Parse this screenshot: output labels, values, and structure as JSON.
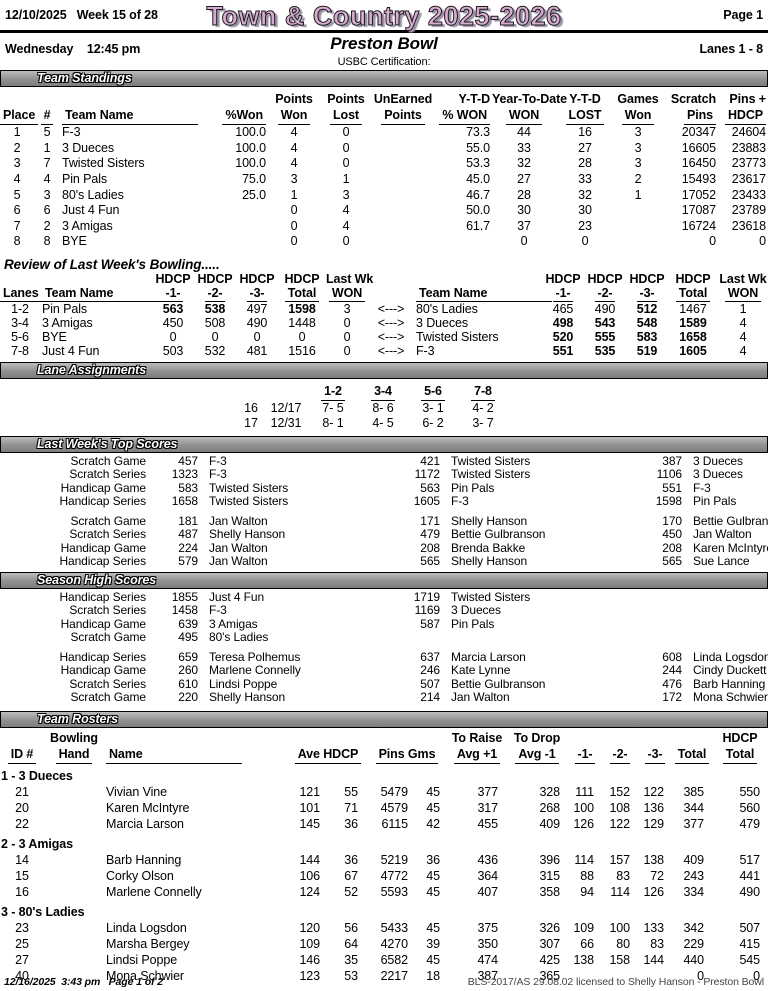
{
  "colors": {
    "title_fill": "#d9abd3",
    "title_shadow": "#9a93a8",
    "section_bar_gray": "#909090"
  },
  "header": {
    "date": "12/10/2025",
    "week": "Week 15 of 28",
    "title": "Town & Country 2025-2026",
    "page": "Page 1",
    "day": "Wednesday",
    "time": "12:45 pm",
    "center_name": "Preston Bowl",
    "lanes": "Lanes 1 - 8",
    "certification": "USBC Certification:"
  },
  "section_titles": {
    "standings": "Team Standings",
    "review": "Review of Last Week's Bowling.....",
    "lanes": "Lane Assignments",
    "top_scores": "Last Week's Top Scores",
    "season_high": "Season High Scores",
    "rosters": "Team Rosters"
  },
  "standings": {
    "header_row1": [
      "",
      "",
      "",
      "",
      "Points",
      "Points",
      "UnEarned",
      "Y-T-D",
      "Year-To-Date",
      "Y-T-D",
      "Games",
      "Scratch",
      "Pins +"
    ],
    "header_row2": [
      "Place",
      "#",
      "Team Name",
      "%Won",
      "Won",
      "Lost",
      "Points",
      "% WON",
      "WON",
      "LOST",
      "Won",
      "Pins",
      "HDCP"
    ],
    "rows": [
      [
        "1",
        "5",
        "F-3",
        "100.0",
        "4",
        "0",
        "",
        "73.3",
        "44",
        "16",
        "3",
        "20347",
        "24604"
      ],
      [
        "2",
        "1",
        "3 Dueces",
        "100.0",
        "4",
        "0",
        "",
        "55.0",
        "33",
        "27",
        "3",
        "16605",
        "23883"
      ],
      [
        "3",
        "7",
        "Twisted Sisters",
        "100.0",
        "4",
        "0",
        "",
        "53.3",
        "32",
        "28",
        "3",
        "16450",
        "23773"
      ],
      [
        "4",
        "4",
        "Pin Pals",
        "75.0",
        "3",
        "1",
        "",
        "45.0",
        "27",
        "33",
        "2",
        "15493",
        "23617"
      ],
      [
        "5",
        "3",
        "80's Ladies",
        "25.0",
        "1",
        "3",
        "",
        "46.7",
        "28",
        "32",
        "1",
        "17052",
        "23433"
      ],
      [
        "6",
        "6",
        "Just 4 Fun",
        "",
        "0",
        "4",
        "",
        "50.0",
        "30",
        "30",
        "",
        "17087",
        "23789"
      ],
      [
        "7",
        "2",
        "3 Amigas",
        "",
        "0",
        "4",
        "",
        "61.7",
        "37",
        "23",
        "",
        "16724",
        "23618"
      ],
      [
        "8",
        "8",
        "BYE",
        "",
        "0",
        "0",
        "",
        "",
        "0",
        "0",
        "",
        "0",
        "0"
      ]
    ]
  },
  "review": {
    "arrow": "<--->",
    "header_row1": [
      "",
      "",
      "HDCP",
      "HDCP",
      "HDCP",
      "HDCP",
      "Last Wk"
    ],
    "header_row2": [
      "Lanes",
      "Team Name",
      "-1-",
      "-2-",
      "-3-",
      "Total",
      "WON"
    ],
    "left": [
      {
        "lanes": "1-2",
        "team": "Pin Pals",
        "games": [
          "563",
          "538",
          "497"
        ],
        "total": "1598",
        "won": "3",
        "bold": [
          1,
          1,
          0,
          1
        ]
      },
      {
        "lanes": "3-4",
        "team": "3 Amigas",
        "games": [
          "450",
          "508",
          "490"
        ],
        "total": "1448",
        "won": "0",
        "bold": [
          0,
          0,
          0,
          0
        ]
      },
      {
        "lanes": "5-6",
        "team": "BYE",
        "games": [
          "0",
          "0",
          "0"
        ],
        "total": "0",
        "won": "0",
        "bold": [
          0,
          0,
          0,
          0
        ]
      },
      {
        "lanes": "7-8",
        "team": "Just 4 Fun",
        "games": [
          "503",
          "532",
          "481"
        ],
        "total": "1516",
        "won": "0",
        "bold": [
          0,
          0,
          0,
          0
        ]
      }
    ],
    "right": [
      {
        "team": "80's Ladies",
        "games": [
          "465",
          "490",
          "512"
        ],
        "total": "1467",
        "won": "1",
        "bold": [
          0,
          0,
          1,
          0
        ]
      },
      {
        "team": "3 Dueces",
        "games": [
          "498",
          "543",
          "548"
        ],
        "total": "1589",
        "won": "4",
        "bold": [
          1,
          1,
          1,
          1
        ]
      },
      {
        "team": "Twisted Sisters",
        "games": [
          "520",
          "555",
          "583"
        ],
        "total": "1658",
        "won": "4",
        "bold": [
          1,
          1,
          1,
          1
        ]
      },
      {
        "team": "F-3",
        "games": [
          "551",
          "535",
          "519"
        ],
        "total": "1605",
        "won": "4",
        "bold": [
          1,
          1,
          1,
          1
        ]
      }
    ]
  },
  "lane_assignments": {
    "lane_headers": [
      "1-2",
      "3-4",
      "5-6",
      "7-8"
    ],
    "rows": [
      [
        "16",
        "12/17",
        "7- 5",
        "8- 6",
        "3- 1",
        "4- 2"
      ],
      [
        "17",
        "12/31",
        "8- 1",
        "4- 5",
        "6- 2",
        "3- 7"
      ]
    ]
  },
  "top_scores": {
    "team_rows": [
      [
        "Scratch Game",
        "457",
        "F-3",
        "421",
        "Twisted Sisters",
        "387",
        "3 Dueces"
      ],
      [
        "Scratch Series",
        "1323",
        "F-3",
        "1172",
        "Twisted Sisters",
        "1106",
        "3 Dueces"
      ],
      [
        "Handicap Game",
        "583",
        "Twisted Sisters",
        "563",
        "Pin Pals",
        "551",
        "F-3"
      ],
      [
        "Handicap Series",
        "1658",
        "Twisted Sisters",
        "1605",
        "F-3",
        "1598",
        "Pin Pals"
      ]
    ],
    "individual_rows": [
      [
        "Scratch Game",
        "181",
        "Jan Walton",
        "171",
        "Shelly Hanson",
        "170",
        "Bettie Gulbranson"
      ],
      [
        "Scratch Series",
        "487",
        "Shelly Hanson",
        "479",
        "Bettie Gulbranson",
        "450",
        "Jan Walton"
      ],
      [
        "Handicap Game",
        "224",
        "Jan Walton",
        "208",
        "Brenda Bakke",
        "208",
        "Karen McIntyre"
      ],
      [
        "Handicap Series",
        "579",
        "Jan Walton",
        "565",
        "Shelly Hanson",
        "565",
        "Sue Lance"
      ]
    ]
  },
  "season_high": {
    "team_rows": [
      [
        "Handicap Series",
        "1855",
        "Just 4 Fun",
        "1719",
        "Twisted Sisters",
        "",
        ""
      ],
      [
        "Scratch Series",
        "1458",
        "F-3",
        "1169",
        "3 Dueces",
        "",
        ""
      ],
      [
        "Handicap Game",
        "639",
        "3 Amigas",
        "587",
        "Pin Pals",
        "",
        ""
      ],
      [
        "Scratch Game",
        "495",
        "80's Ladies",
        "",
        "",
        "",
        ""
      ]
    ],
    "individual_rows": [
      [
        "Handicap Series",
        "659",
        "Teresa Polhemus",
        "637",
        "Marcia Larson",
        "608",
        "Linda Logsdon"
      ],
      [
        "Handicap Game",
        "260",
        "Marlene Connelly",
        "246",
        "Kate Lynne",
        "244",
        "Cindy Duckett"
      ],
      [
        "Scratch Series",
        "610",
        "Lindsi Poppe",
        "507",
        "Bettie Gulbranson",
        "476",
        "Barb Hanning"
      ],
      [
        "Scratch Game",
        "220",
        "Shelly Hanson",
        "214",
        "Jan Walton",
        "172",
        "Mona Schwier"
      ]
    ]
  },
  "rosters": {
    "header_row1": [
      "",
      "Bowling",
      "",
      "",
      "",
      "To Raise",
      "To Drop",
      "",
      "",
      "",
      "",
      "HDCP"
    ],
    "header_row2": [
      "ID #",
      "Hand",
      "Name",
      "Ave HDCP",
      "Pins Gms",
      "Avg +1",
      "Avg -1",
      "-1-",
      "-2-",
      "-3-",
      "Total",
      "Total"
    ],
    "groups": [
      {
        "name": "1 - 3 Dueces",
        "players": [
          [
            "21",
            "",
            "Vivian Vine",
            "121",
            "55",
            "5479",
            "45",
            "377",
            "328",
            "111",
            "152",
            "122",
            "385",
            "550"
          ],
          [
            "20",
            "",
            "Karen McIntyre",
            "101",
            "71",
            "4579",
            "45",
            "317",
            "268",
            "100",
            "108",
            "136",
            "344",
            "560"
          ],
          [
            "22",
            "",
            "Marcia Larson",
            "145",
            "36",
            "6115",
            "42",
            "455",
            "409",
            "126",
            "122",
            "129",
            "377",
            "479"
          ]
        ]
      },
      {
        "name": "2 - 3 Amigas",
        "players": [
          [
            "14",
            "",
            "Barb Hanning",
            "144",
            "36",
            "5219",
            "36",
            "436",
            "396",
            "114",
            "157",
            "138",
            "409",
            "517"
          ],
          [
            "15",
            "",
            "Corky Olson",
            "106",
            "67",
            "4772",
            "45",
            "364",
            "315",
            "88",
            "83",
            "72",
            "243",
            "441"
          ],
          [
            "16",
            "",
            "Marlene Connelly",
            "124",
            "52",
            "5593",
            "45",
            "407",
            "358",
            "94",
            "114",
            "126",
            "334",
            "490"
          ]
        ]
      },
      {
        "name": "3 - 80's Ladies",
        "players": [
          [
            "23",
            "",
            "Linda Logsdon",
            "120",
            "56",
            "5433",
            "45",
            "375",
            "326",
            "109",
            "100",
            "133",
            "342",
            "507"
          ],
          [
            "25",
            "",
            "Marsha Bergey",
            "109",
            "64",
            "4270",
            "39",
            "350",
            "307",
            "66",
            "80",
            "83",
            "229",
            "415"
          ],
          [
            "27",
            "",
            "Lindsi Poppe",
            "146",
            "35",
            "6582",
            "45",
            "474",
            "425",
            "138",
            "158",
            "144",
            "440",
            "545"
          ],
          [
            "40",
            "",
            "Mona Schwier",
            "123",
            "53",
            "2217",
            "18",
            "387",
            "365",
            "",
            "",
            "",
            "0",
            "0"
          ]
        ]
      }
    ]
  },
  "footer": {
    "date": "12/16/2025",
    "time": "3:43 pm",
    "page": "Page 1 of 2",
    "right": "BLS-2017/AS 29.08.02 licensed to Shelly Hanson - Preston Bowl"
  }
}
